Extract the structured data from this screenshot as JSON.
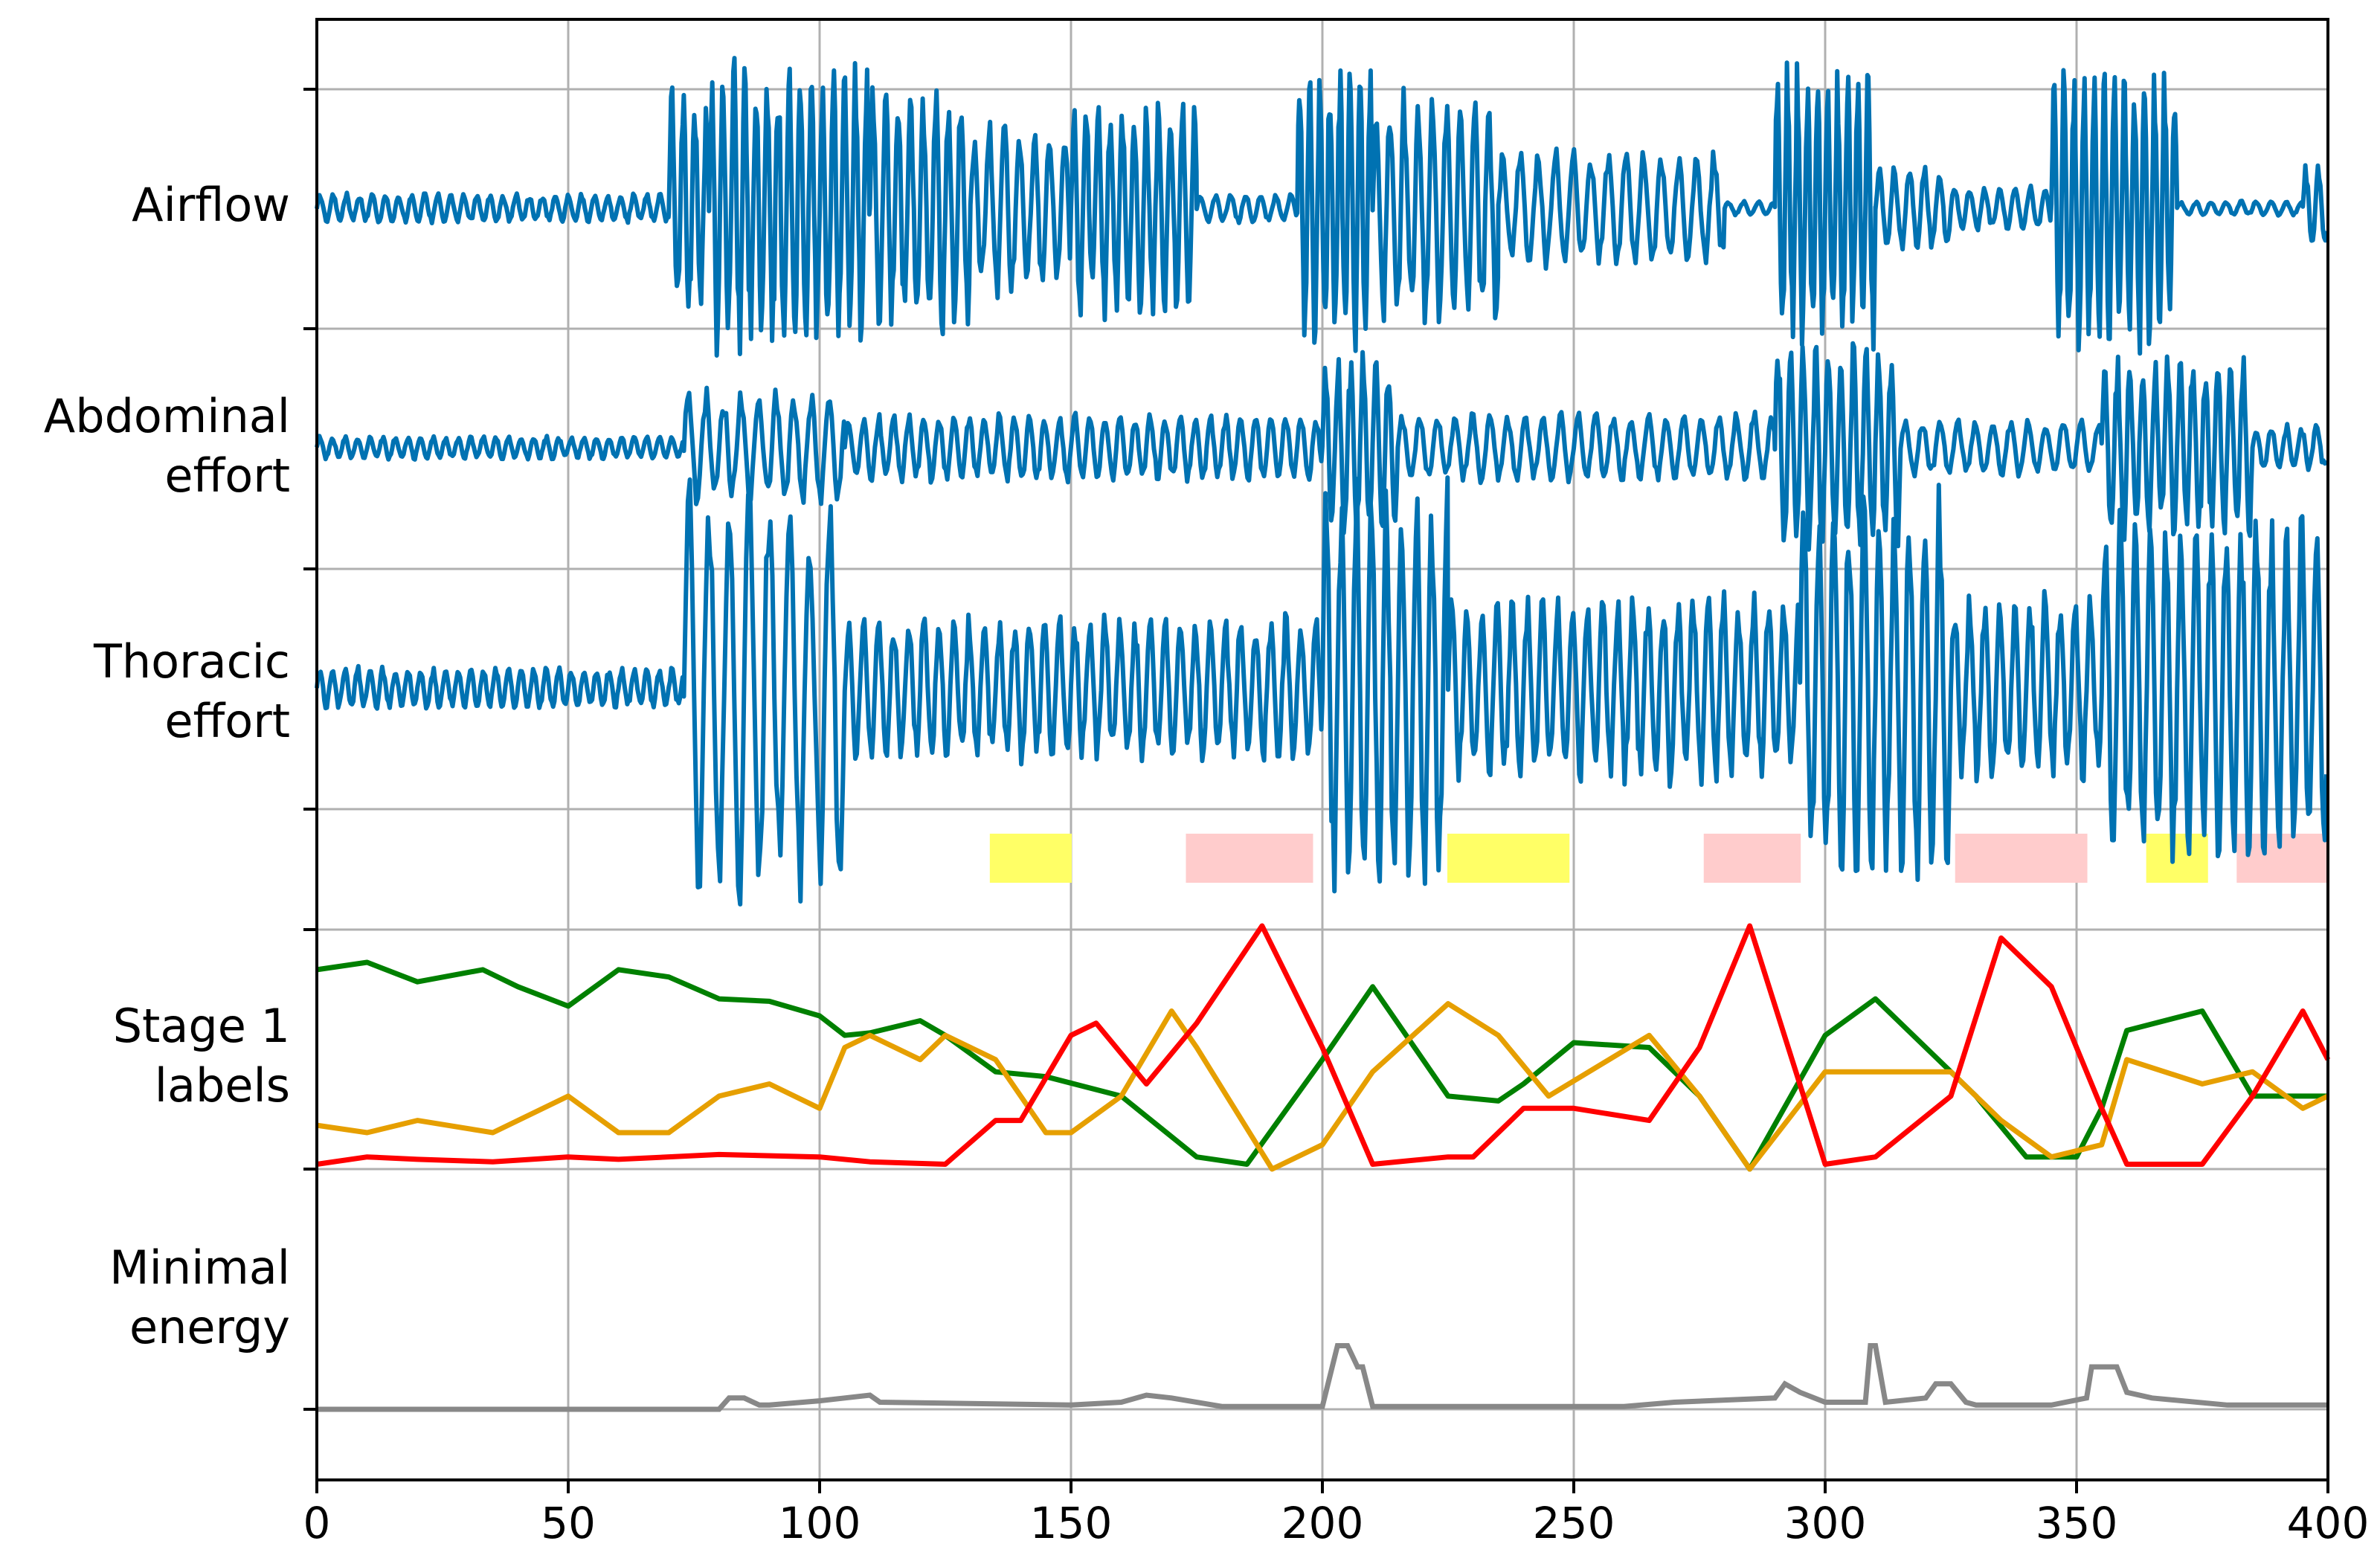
{
  "chart_data": {
    "type": "line",
    "rows": [
      {
        "key": "airflow",
        "label_lines": [
          "Airflow"
        ]
      },
      {
        "key": "abdominal",
        "label_lines": [
          "Abdominal",
          "effort"
        ]
      },
      {
        "key": "thoracic",
        "label_lines": [
          "Thoracic",
          "effort"
        ]
      },
      {
        "key": "stage1",
        "label_lines": [
          "Stage 1",
          "labels"
        ]
      },
      {
        "key": "energy",
        "label_lines": [
          "Minimal",
          "energy"
        ]
      }
    ],
    "xlim": [
      0,
      400
    ],
    "xticks": [
      0,
      50,
      100,
      150,
      200,
      250,
      300,
      350,
      400
    ],
    "grid": true,
    "signal_color": "#0072b2",
    "signals": {
      "airflow": {
        "segments": [
          {
            "x0": 0,
            "x1": 70,
            "amp": 0.1,
            "period": 2.6
          },
          {
            "x0": 70,
            "x1": 78,
            "amp": 0.8,
            "period": 2.3
          },
          {
            "x0": 78,
            "x1": 110,
            "amp": 1.0,
            "period": 2.2
          },
          {
            "x0": 110,
            "x1": 130,
            "amp": 0.85,
            "period": 2.5
          },
          {
            "x0": 130,
            "x1": 150,
            "amp": 0.6,
            "period": 3.0
          },
          {
            "x0": 150,
            "x1": 175,
            "amp": 0.75,
            "period": 2.4
          },
          {
            "x0": 175,
            "x1": 195,
            "amp": 0.1,
            "period": 3.0
          },
          {
            "x0": 195,
            "x1": 210,
            "amp": 1.0,
            "period": 2.0
          },
          {
            "x0": 210,
            "x1": 235,
            "amp": 0.8,
            "period": 2.8
          },
          {
            "x0": 235,
            "x1": 280,
            "amp": 0.4,
            "period": 3.5
          },
          {
            "x0": 280,
            "x1": 290,
            "amp": 0.05,
            "period": 3.0
          },
          {
            "x0": 290,
            "x1": 310,
            "amp": 0.95,
            "period": 2.0
          },
          {
            "x0": 310,
            "x1": 325,
            "amp": 0.3,
            "period": 3.0
          },
          {
            "x0": 325,
            "x1": 345,
            "amp": 0.15,
            "period": 3.0
          },
          {
            "x0": 345,
            "x1": 370,
            "amp": 0.95,
            "period": 2.0
          },
          {
            "x0": 370,
            "x1": 395,
            "amp": 0.05,
            "period": 3.0
          },
          {
            "x0": 395,
            "x1": 400,
            "amp": 0.3,
            "period": 2.5
          }
        ]
      },
      "abdominal": {
        "segments": [
          {
            "x0": 0,
            "x1": 73,
            "amp": 0.1,
            "period": 2.5
          },
          {
            "x0": 73,
            "x1": 105,
            "amp": 0.5,
            "period": 3.5
          },
          {
            "x0": 105,
            "x1": 200,
            "amp": 0.3,
            "period": 3.0
          },
          {
            "x0": 200,
            "x1": 215,
            "amp": 0.8,
            "period": 2.5
          },
          {
            "x0": 215,
            "x1": 290,
            "amp": 0.3,
            "period": 3.5
          },
          {
            "x0": 290,
            "x1": 315,
            "amp": 0.9,
            "period": 2.5
          },
          {
            "x0": 315,
            "x1": 355,
            "amp": 0.25,
            "period": 3.5
          },
          {
            "x0": 355,
            "x1": 385,
            "amp": 0.8,
            "period": 2.5
          },
          {
            "x0": 385,
            "x1": 400,
            "amp": 0.2,
            "period": 3.0
          }
        ]
      },
      "thoracic": {
        "segments": [
          {
            "x0": 0,
            "x1": 73,
            "amp": 0.1,
            "period": 2.5
          },
          {
            "x0": 73,
            "x1": 105,
            "amp": 1.0,
            "period": 4.0
          },
          {
            "x0": 105,
            "x1": 200,
            "amp": 0.35,
            "period": 3.0
          },
          {
            "x0": 200,
            "x1": 225,
            "amp": 1.0,
            "period": 3.0
          },
          {
            "x0": 225,
            "x1": 295,
            "amp": 0.45,
            "period": 3.0
          },
          {
            "x0": 295,
            "x1": 325,
            "amp": 0.95,
            "period": 3.0
          },
          {
            "x0": 325,
            "x1": 355,
            "amp": 0.45,
            "period": 3.0
          },
          {
            "x0": 355,
            "x1": 400,
            "amp": 0.85,
            "period": 3.0
          }
        ]
      }
    },
    "event_bars": [
      {
        "x0": 134,
        "x1": 150,
        "color": "#ffff66"
      },
      {
        "x0": 173,
        "x1": 198,
        "color": "#ffcccc"
      },
      {
        "x0": 225,
        "x1": 249,
        "color": "#ffff66"
      },
      {
        "x0": 276,
        "x1": 295,
        "color": "#ffcccc"
      },
      {
        "x0": 326,
        "x1": 352,
        "color": "#ffcccc"
      },
      {
        "x0": 364,
        "x1": 376,
        "color": "#ffff66"
      },
      {
        "x0": 382,
        "x1": 400,
        "color": "#ffcccc"
      }
    ],
    "stage1_ylim": [
      0,
      1
    ],
    "stage1_series": [
      {
        "color": "#008000",
        "x": [
          0,
          10,
          20,
          33,
          40,
          50,
          60,
          70,
          80,
          90,
          100,
          105,
          110,
          120,
          125,
          135,
          145,
          160,
          175,
          185,
          200,
          210,
          225,
          235,
          240,
          250,
          265,
          275,
          285,
          300,
          310,
          320,
          330,
          340,
          350,
          355,
          360,
          375,
          385,
          395,
          400
        ],
        "y": [
          0.82,
          0.85,
          0.77,
          0.82,
          0.75,
          0.67,
          0.82,
          0.79,
          0.7,
          0.69,
          0.63,
          0.55,
          0.56,
          0.61,
          0.55,
          0.4,
          0.38,
          0.3,
          0.05,
          0.02,
          0.45,
          0.75,
          0.3,
          0.28,
          0.35,
          0.52,
          0.5,
          0.3,
          0.0,
          0.55,
          0.7,
          0.5,
          0.3,
          0.05,
          0.05,
          0.25,
          0.57,
          0.65,
          0.3,
          0.3,
          0.3
        ]
      },
      {
        "color": "#e69f00",
        "x": [
          0,
          10,
          20,
          35,
          50,
          60,
          70,
          80,
          90,
          100,
          105,
          110,
          120,
          125,
          135,
          145,
          150,
          160,
          170,
          175,
          190,
          200,
          210,
          225,
          235,
          245,
          265,
          275,
          285,
          300,
          310,
          325,
          335,
          345,
          355,
          360,
          375,
          385,
          395,
          400
        ],
        "y": [
          0.18,
          0.15,
          0.2,
          0.15,
          0.3,
          0.15,
          0.15,
          0.3,
          0.35,
          0.25,
          0.5,
          0.55,
          0.45,
          0.55,
          0.45,
          0.15,
          0.15,
          0.3,
          0.65,
          0.5,
          0.0,
          0.1,
          0.4,
          0.68,
          0.55,
          0.3,
          0.55,
          0.3,
          0.0,
          0.4,
          0.4,
          0.4,
          0.2,
          0.05,
          0.1,
          0.45,
          0.35,
          0.4,
          0.25,
          0.3
        ]
      },
      {
        "color": "#ff0000",
        "x": [
          0,
          10,
          20,
          35,
          50,
          60,
          80,
          100,
          110,
          125,
          135,
          140,
          150,
          155,
          165,
          175,
          188,
          200,
          210,
          225,
          230,
          240,
          250,
          265,
          275,
          285,
          300,
          310,
          325,
          335,
          345,
          355,
          360,
          375,
          385,
          395,
          400
        ],
        "y": [
          0.02,
          0.05,
          0.04,
          0.03,
          0.05,
          0.04,
          0.06,
          0.05,
          0.03,
          0.02,
          0.2,
          0.2,
          0.55,
          0.6,
          0.35,
          0.6,
          1.0,
          0.5,
          0.02,
          0.05,
          0.05,
          0.25,
          0.25,
          0.2,
          0.5,
          1.0,
          0.02,
          0.05,
          0.3,
          0.95,
          0.75,
          0.25,
          0.02,
          0.02,
          0.3,
          0.65,
          0.45
        ]
      }
    ],
    "energy_color": "#888888",
    "energy_ylim": [
      0,
      1
    ],
    "energy": {
      "x": [
        0,
        80,
        82,
        85,
        88,
        90,
        100,
        105,
        110,
        112,
        150,
        160,
        165,
        170,
        180,
        200,
        203,
        205,
        207,
        208,
        210,
        260,
        270,
        290,
        292,
        295,
        300,
        308,
        309,
        310,
        312,
        320,
        322,
        325,
        328,
        330,
        345,
        352,
        353,
        358,
        360,
        365,
        380,
        400
      ],
      "y": [
        0.0,
        0.0,
        0.08,
        0.08,
        0.03,
        0.03,
        0.06,
        0.08,
        0.1,
        0.05,
        0.03,
        0.05,
        0.1,
        0.08,
        0.02,
        0.02,
        0.45,
        0.45,
        0.3,
        0.3,
        0.02,
        0.02,
        0.05,
        0.08,
        0.18,
        0.12,
        0.05,
        0.05,
        0.45,
        0.45,
        0.05,
        0.08,
        0.18,
        0.18,
        0.05,
        0.03,
        0.03,
        0.08,
        0.3,
        0.3,
        0.12,
        0.08,
        0.03,
        0.03
      ]
    }
  }
}
